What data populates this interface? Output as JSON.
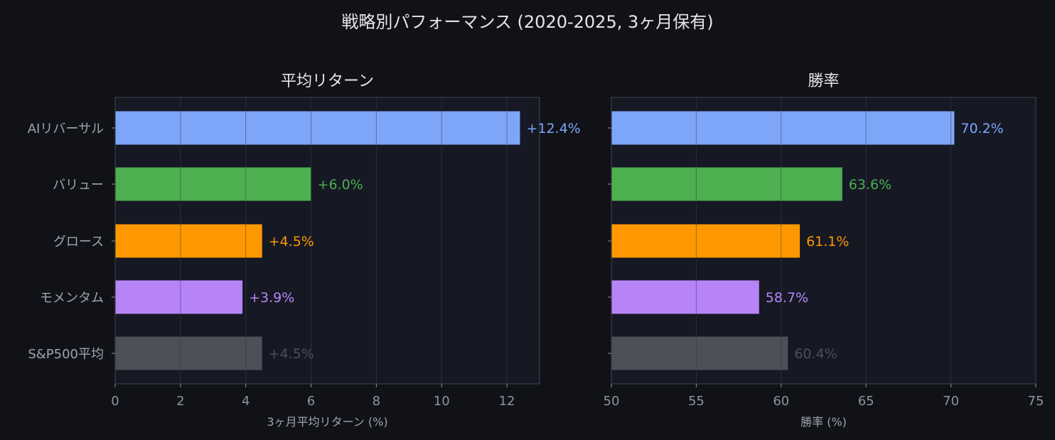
{
  "figure_title": "戦略別パフォーマンス (2020-2025, 3ヶ月保有)",
  "colors": {
    "background": "#111217",
    "plot_background": "#161824",
    "frame": "#3a3d4a",
    "grid": "#2a2d3a"
  },
  "chart_data": [
    {
      "type": "bar",
      "orientation": "horizontal",
      "title": "平均リターン",
      "xlabel": "3ヶ月平均リターン (%)",
      "ylabel": "",
      "categories": [
        "AIリバーサル",
        "バリュー",
        "グロース",
        "モメンタム",
        "S&P500平均"
      ],
      "values": [
        12.4,
        6.0,
        4.5,
        3.9,
        4.5
      ],
      "value_labels": [
        "+12.4%",
        "+6.0%",
        "+4.5%",
        "+3.9%",
        "+4.5%"
      ],
      "bar_colors": [
        "#7ea6f8",
        "#4caf50",
        "#ff9800",
        "#b784f7",
        "#4b5059"
      ],
      "label_colors": [
        "#7ea6f8",
        "#4caf50",
        "#ff9800",
        "#b784f7",
        "#4b5059"
      ],
      "xlim": [
        0,
        13
      ],
      "xticks": [
        0,
        2,
        4,
        6,
        8,
        10,
        12
      ],
      "grid": "vertical"
    },
    {
      "type": "bar",
      "orientation": "horizontal",
      "title": "勝率",
      "xlabel": "勝率 (%)",
      "ylabel": "",
      "categories": [
        "AIリバーサル",
        "バリュー",
        "グロース",
        "モメンタム",
        "S&P500平均"
      ],
      "values": [
        70.2,
        63.6,
        61.1,
        58.7,
        60.4
      ],
      "value_labels": [
        "70.2%",
        "63.6%",
        "61.1%",
        "58.7%",
        "60.4%"
      ],
      "bar_colors": [
        "#7ea6f8",
        "#4caf50",
        "#ff9800",
        "#b784f7",
        "#4b5059"
      ],
      "label_colors": [
        "#7ea6f8",
        "#4caf50",
        "#ff9800",
        "#b784f7",
        "#4b5059"
      ],
      "xlim": [
        50,
        75
      ],
      "xticks": [
        50,
        55,
        60,
        65,
        70,
        75
      ],
      "grid": "vertical",
      "show_category_labels": false
    }
  ]
}
